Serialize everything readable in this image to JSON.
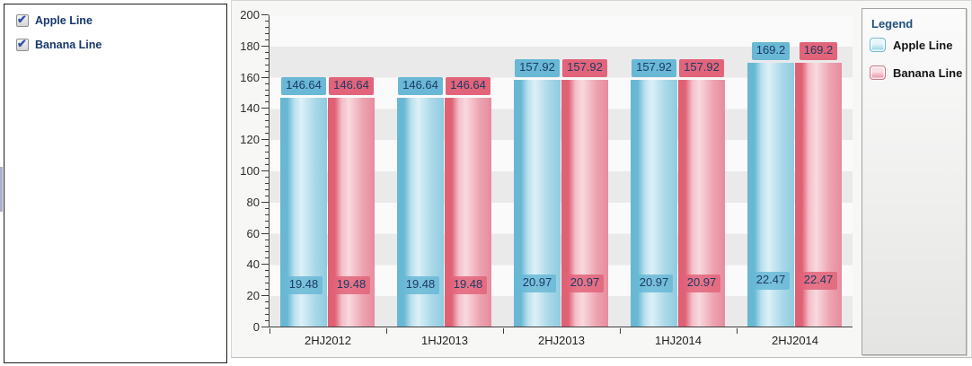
{
  "left_panel": {
    "items": [
      {
        "label": "Apple Line",
        "checked": true
      },
      {
        "label": "Banana Line",
        "checked": true
      }
    ]
  },
  "legend": {
    "title": "Legend",
    "entries": [
      {
        "label": "Apple Line",
        "color_top": "#e6f5fa",
        "color_bottom": "#8ccfe2",
        "border": "#74b7ce"
      },
      {
        "label": "Banana Line",
        "color_top": "#fadfe4",
        "color_bottom": "#e8869b",
        "border": "#cf7488"
      }
    ]
  },
  "chart_data": {
    "type": "bar",
    "categories": [
      "2HJ2012",
      "1HJ2013",
      "2HJ2013",
      "1HJ2014",
      "2HJ2014"
    ],
    "series": [
      {
        "name": "Apple Line",
        "values": [
          146.64,
          146.64,
          157.92,
          157.92,
          169.2
        ],
        "inner_values": [
          19.48,
          19.48,
          20.97,
          20.97,
          22.47
        ],
        "bar_gradient": [
          "#68b8d4",
          "#b9e0ee",
          "#ddf0f7",
          "#a9d8e8",
          "#8fcbe0"
        ],
        "label_bg": "#68b8d6"
      },
      {
        "name": "Banana Line",
        "values": [
          146.64,
          146.64,
          157.92,
          157.92,
          169.2
        ],
        "inner_values": [
          19.48,
          19.48,
          20.97,
          20.97,
          22.47
        ],
        "bar_gradient": [
          "#e06174",
          "#f3bfc9",
          "#f9d9de",
          "#eda3b1",
          "#e68c9d"
        ],
        "label_bg": "#e2647a"
      }
    ],
    "title": "",
    "xlabel": "",
    "ylabel": "",
    "ylim": [
      0,
      200
    ],
    "y_major_step": 20,
    "y_minor_step": 4,
    "grid": "horizontal-bands",
    "band_color": "#eaeaea",
    "plot_bg": "#fafafa",
    "label_text_color": "#1d3a64",
    "legend_position": "right"
  }
}
